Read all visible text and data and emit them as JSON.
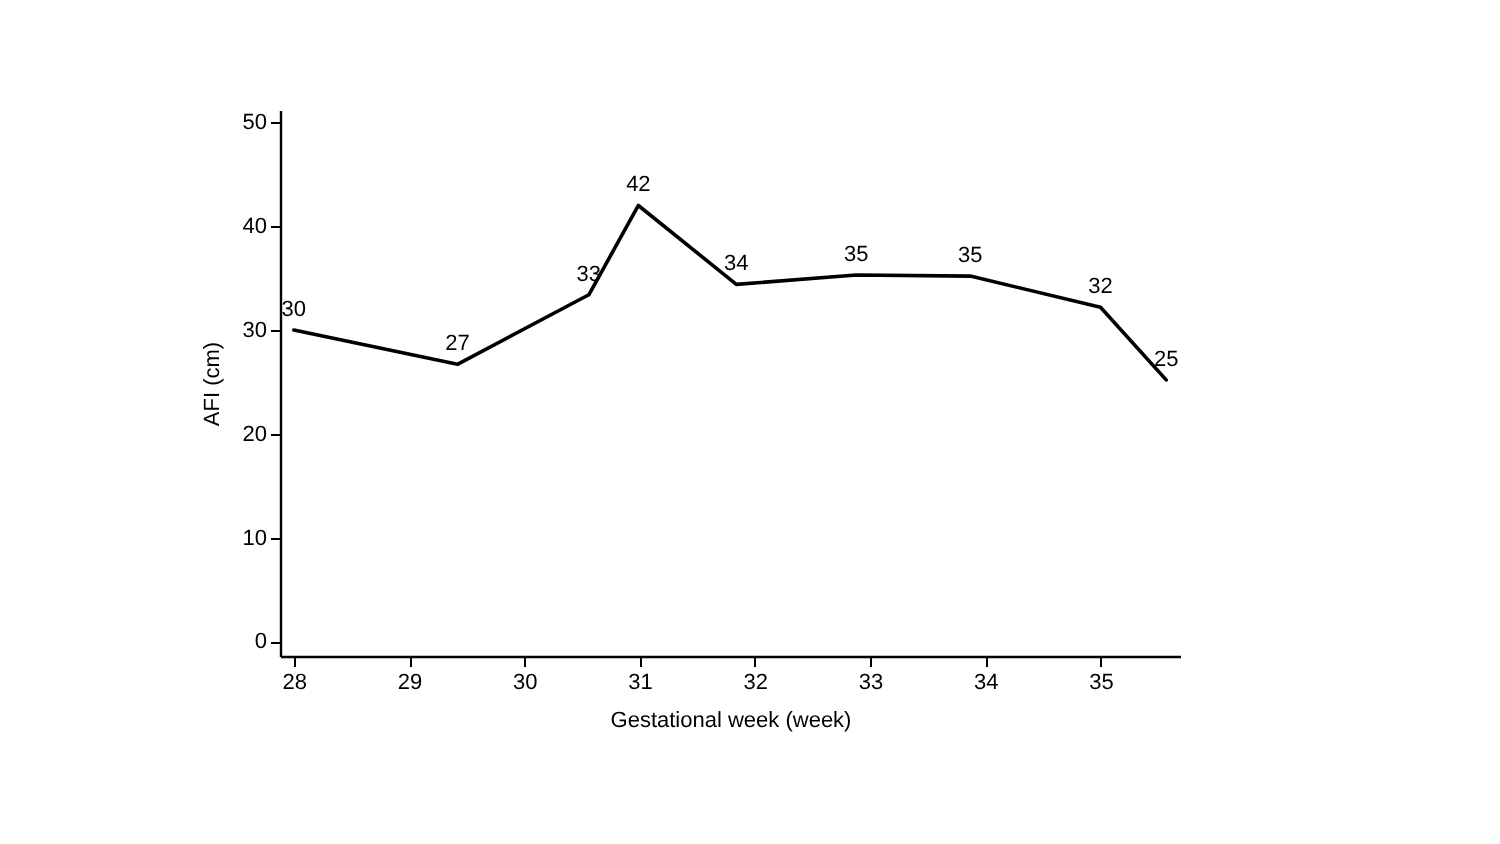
{
  "chart_data": {
    "type": "line",
    "xlabel": "Gestational week (week)",
    "ylabel": "AFI (cm)",
    "x": [
      28,
      29.42,
      30.56,
      30.99,
      31.84,
      32.88,
      33.87,
      35.0,
      35.57
    ],
    "series": [
      {
        "color": "#000000",
        "values": [
          30,
          26.7,
          33.4,
          42,
          34.4,
          35.3,
          35.2,
          32.2,
          25.2
        ],
        "value_labels": [
          "30",
          "27",
          "33",
          "42",
          "34",
          "35",
          "35",
          "32",
          "25"
        ]
      }
    ],
    "xlim": [
      27.88,
      35.69
    ],
    "ylim": [
      -1.4,
      51.2
    ],
    "xticks": [
      28,
      29,
      30,
      31,
      32,
      33,
      34,
      35
    ],
    "yticks": [
      0,
      10,
      20,
      30,
      40,
      50
    ],
    "grid": false,
    "legend": false,
    "marker": "none",
    "line_style": "solid"
  }
}
